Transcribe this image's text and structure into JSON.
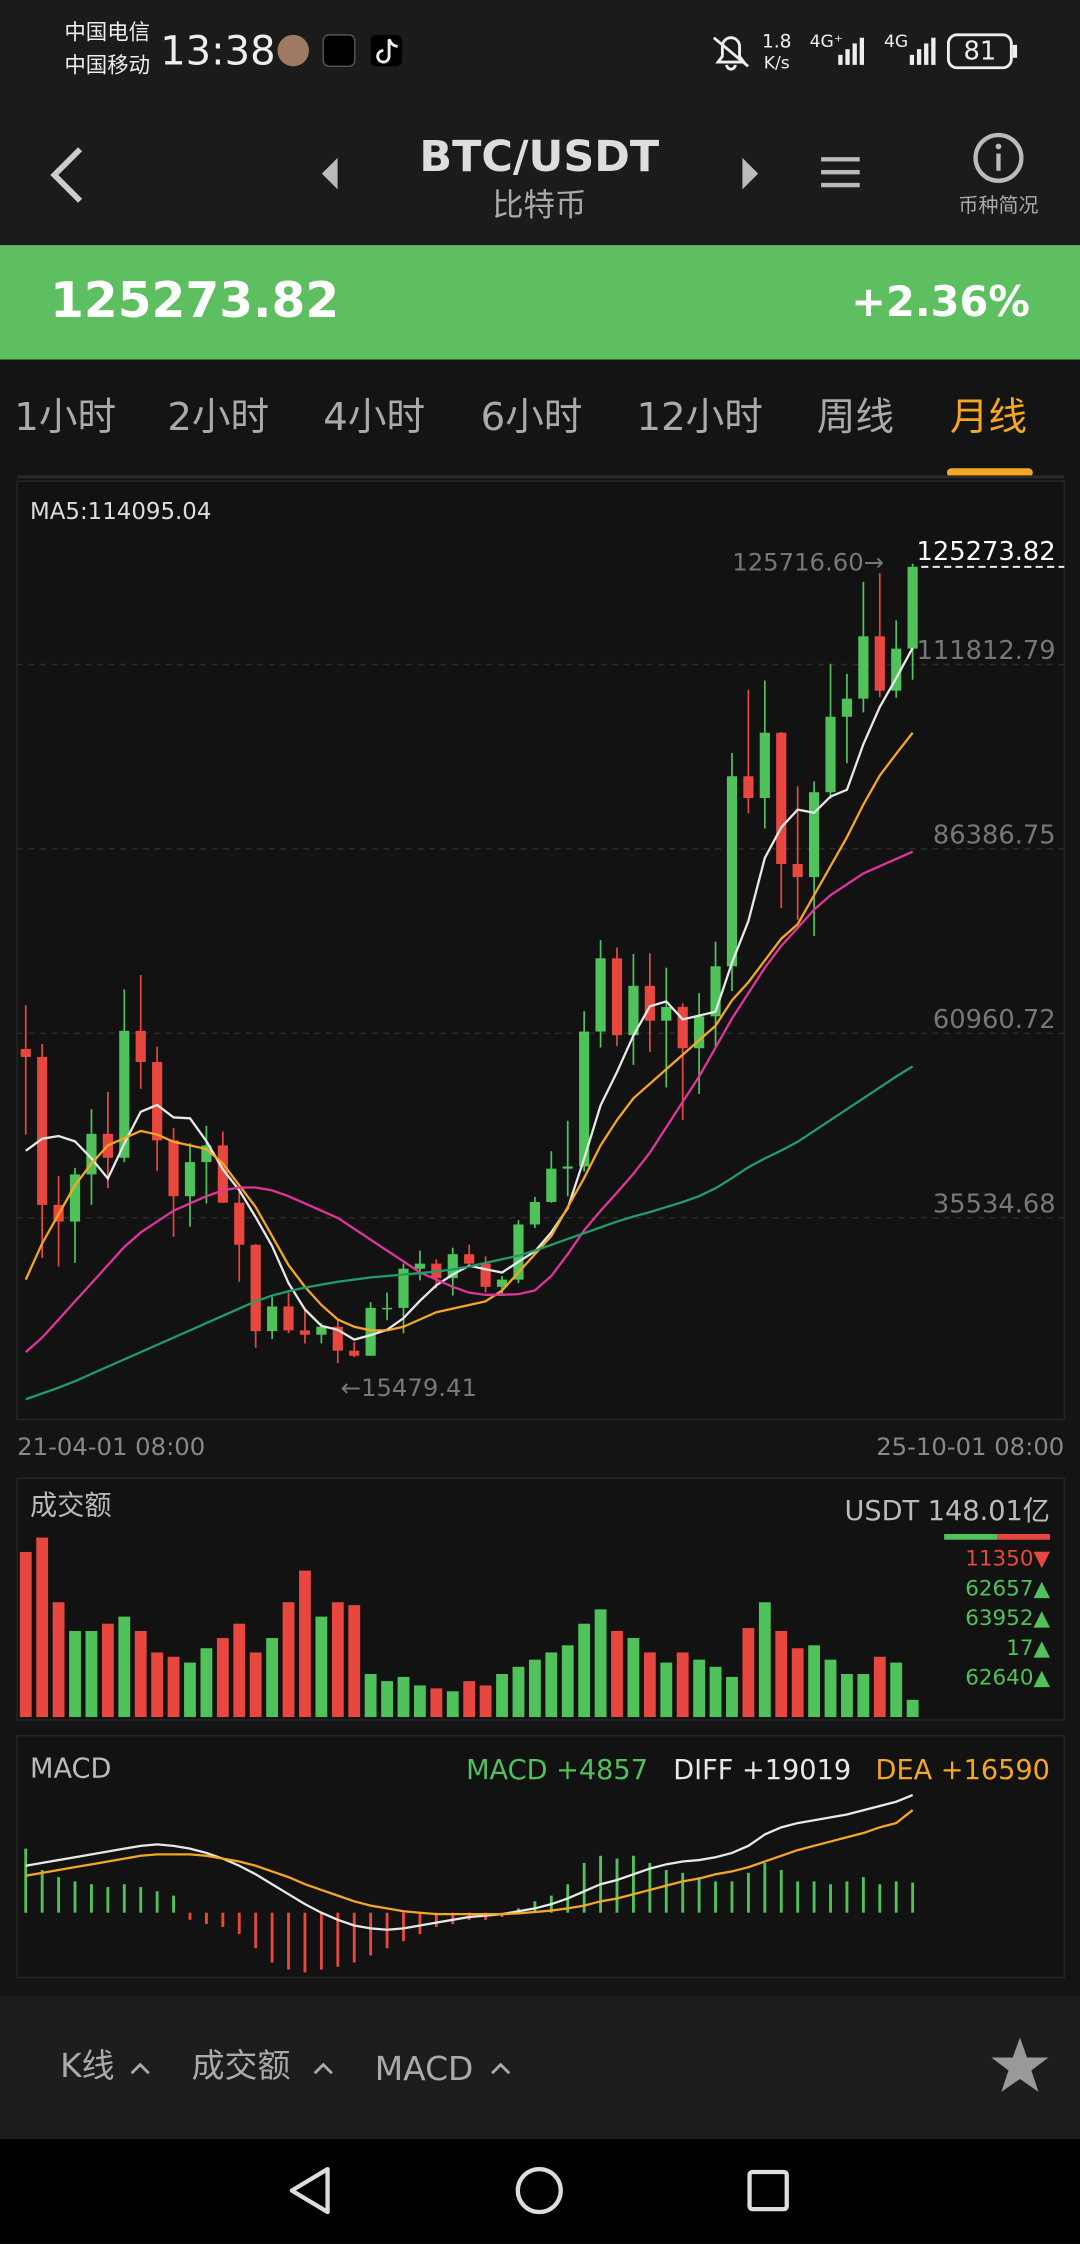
{
  "status_bar": {
    "carrier_1": "中国电信",
    "carrier_2": "中国移动",
    "time": "13:38",
    "speed": "1.8",
    "speed_unit": "K/s",
    "network_1": "4G⁺",
    "network_2": "4G",
    "battery": "81"
  },
  "header": {
    "pair": "BTC/USDT",
    "name": "比特币",
    "info": "币种简况"
  },
  "ticker": {
    "price": "125273.82",
    "change": "+2.36%"
  },
  "tabs": {
    "items": [
      "1小时",
      "2小时",
      "4小时",
      "6小时",
      "12小时",
      "周线",
      "月线"
    ],
    "active": 6
  },
  "chart_data": {
    "type": "candlestick",
    "ma_label": "MA5:114095.04",
    "categories": [
      "21-04-01 08:00",
      null,
      null,
      null,
      null,
      null,
      null,
      null,
      null,
      null,
      null,
      null,
      null,
      null,
      null,
      null,
      null,
      null,
      null,
      null,
      null,
      null,
      null,
      null,
      null,
      null,
      null,
      null,
      null,
      null,
      null,
      null,
      null,
      null,
      null,
      null,
      null,
      null,
      null,
      null,
      null,
      null,
      null,
      null,
      null,
      null,
      null,
      null,
      null,
      null,
      null,
      null,
      null,
      null,
      "25-10-01 08:00"
    ],
    "open": [
      58800,
      57700,
      37300,
      35000,
      41500,
      47100,
      43800,
      61300,
      57000,
      46200,
      38500,
      43200,
      45500,
      37600,
      31800,
      19900,
      23300,
      20000,
      19400,
      20500,
      17200,
      16500,
      23100,
      23100,
      28500,
      29200,
      27200,
      30500,
      29200,
      26000,
      27000,
      34600,
      37700,
      42300,
      42600,
      61200,
      71300,
      60700,
      67500,
      62700,
      64600,
      58900,
      63300,
      70200,
      96400,
      93400,
      102400,
      84300,
      82500,
      94200,
      104600,
      107100,
      115700,
      108200,
      114000
    ],
    "high": [
      64850,
      59500,
      41300,
      42400,
      50500,
      52900,
      67000,
      69000,
      59100,
      47900,
      45800,
      48200,
      47400,
      40000,
      31900,
      24600,
      25200,
      22800,
      21000,
      21400,
      18400,
      23900,
      25200,
      29200,
      31000,
      29800,
      31400,
      31800,
      30200,
      27500,
      35200,
      38400,
      44700,
      48900,
      64000,
      73800,
      72800,
      71900,
      72000,
      70000,
      65100,
      66500,
      73600,
      99600,
      108300,
      109600,
      102500,
      95000,
      95700,
      111900,
      110500,
      123200,
      124400,
      117900,
      125716.6
    ],
    "low": [
      47000,
      30000,
      28800,
      29300,
      37300,
      39600,
      43200,
      53300,
      42000,
      32900,
      34300,
      37500,
      37600,
      26700,
      17600,
      18800,
      19600,
      18200,
      18200,
      15479.41,
      16300,
      16500,
      21400,
      19600,
      26900,
      25800,
      24800,
      28900,
      25200,
      24900,
      26500,
      34100,
      37600,
      38500,
      41900,
      59000,
      59200,
      56600,
      58400,
      53500,
      49000,
      52600,
      58900,
      66800,
      91300,
      89200,
      78200,
      76600,
      74400,
      93300,
      98200,
      105200,
      107300,
      107200,
      109700
    ],
    "close": [
      57700,
      37300,
      35000,
      41500,
      47100,
      43800,
      61300,
      57000,
      46200,
      38500,
      43200,
      45500,
      37600,
      31800,
      19900,
      23300,
      20000,
      19400,
      20500,
      17200,
      16500,
      23100,
      23100,
      28500,
      29200,
      27200,
      30500,
      29200,
      26000,
      27000,
      34600,
      37700,
      42300,
      42600,
      61200,
      71300,
      60700,
      67500,
      62700,
      64600,
      58900,
      63300,
      70200,
      96400,
      93400,
      102400,
      84300,
      82500,
      94200,
      104600,
      107100,
      115700,
      108200,
      114000,
      125273.82
    ],
    "up_color": "#4fc25a",
    "down_color": "#e8473f",
    "ma_lines": [
      {
        "color": "#e8e8e8",
        "values": [
          44760,
          46420,
          46800,
          46060,
          43720,
          40940,
          45740,
          50140,
          51080,
          49360,
          49240,
          46080,
          42200,
          39320,
          35600,
          31620,
          26520,
          22880,
          20620,
          20080,
          18720,
          19340,
          20080,
          21680,
          24080,
          26220,
          27700,
          28920,
          28420,
          27980,
          29460,
          30900,
          33520,
          36840,
          43680,
          51020,
          55620,
          60660,
          64680,
          65360,
          62880,
          63400,
          63940,
          70680,
          76440,
          85140,
          89340,
          91800,
          91360,
          93600,
          94540,
          100820,
          105960,
          109920,
          114095.04
        ]
      },
      {
        "color": "#f5a623",
        "values": [
          27000,
          32000,
          36000,
          40000,
          43000,
          45500,
          46500,
          47500,
          47000,
          46000,
          45500,
          45000,
          43000,
          40000,
          37000,
          33000,
          29000,
          26000,
          23500,
          21500,
          20500,
          20000,
          20000,
          20500,
          21500,
          22500,
          23000,
          23500,
          24000,
          25500,
          28000,
          30500,
          33000,
          37000,
          41000,
          45500,
          49000,
          52000,
          54000,
          56000,
          58000,
          60000,
          62000,
          65500,
          68000,
          71000,
          74000,
          76000,
          80000,
          84000,
          88000,
          92500,
          96500,
          99500,
          102400
        ]
      },
      {
        "color": "#e0359a",
        "values": [
          17000,
          19000,
          21500,
          24000,
          26500,
          29000,
          31500,
          33500,
          35000,
          36500,
          37500,
          38500,
          39300,
          39700,
          39700,
          39300,
          38500,
          37500,
          36500,
          35500,
          34000,
          32500,
          31000,
          29500,
          28000,
          27000,
          26000,
          25200,
          24900,
          24900,
          25000,
          25500,
          27500,
          30500,
          33800,
          36500,
          39000,
          41600,
          44500,
          48000,
          51500,
          55000,
          59000,
          63000,
          66500,
          70000,
          73000,
          75500,
          78000,
          80000,
          81500,
          83000,
          84000,
          85000,
          86000
        ]
      },
      {
        "color": "#1e9e6a",
        "values": [
          10500,
          11300,
          12100,
          13000,
          14000,
          15000,
          16000,
          17000,
          18000,
          19000,
          20000,
          21000,
          22000,
          23000,
          24000,
          24800,
          25400,
          25900,
          26300,
          26700,
          27000,
          27300,
          27500,
          27700,
          27900,
          28100,
          28400,
          28800,
          29300,
          29800,
          30300,
          31000,
          31800,
          32600,
          33400,
          34200,
          35000,
          35700,
          36300,
          37000,
          37700,
          38500,
          39600,
          41000,
          42500,
          43700,
          44800,
          46000,
          47500,
          49000,
          50500,
          52000,
          53500,
          55000,
          56400
        ]
      }
    ],
    "ylim": [
      8100,
      136300
    ],
    "yticks": [
      35534.68,
      60960.72,
      86386.75,
      111812.79
    ],
    "grid": true,
    "high_mark": {
      "value": 125716.6,
      "label": "125716.60→"
    },
    "low_mark": {
      "value": 15479.41,
      "label": "←15479.41"
    },
    "last_price": 125273.82
  },
  "volume": {
    "title": "成交额",
    "latest_label": "USDT 148.01亿",
    "values": [
      1415,
      1538,
      984,
      738,
      738,
      800,
      861,
      738,
      554,
      517,
      467,
      590,
      677,
      800,
      554,
      677,
      984,
      1255,
      861,
      984,
      959,
      369,
      308,
      344,
      271,
      246,
      221,
      308,
      271,
      369,
      431,
      492,
      554,
      615,
      800,
      923,
      738,
      677,
      554,
      467,
      554,
      492,
      431,
      344,
      763,
      984,
      738,
      590,
      615,
      492,
      369,
      369,
      517,
      467,
      148.01
    ],
    "ylim": [
      0,
      1900
    ],
    "side_labels": [
      {
        "text": "11350▼",
        "color": "#e8473f"
      },
      {
        "text": "62657▲",
        "color": "#4fc25a"
      },
      {
        "text": "63952▲",
        "color": "#4fc25a"
      },
      {
        "text": "17▲",
        "color": "#4fc25a"
      },
      {
        "text": "62640▲",
        "color": "#4fc25a"
      }
    ]
  },
  "macd": {
    "title": "MACD",
    "macd_label": "MACD +4857",
    "diff_label": "DIFF +19019",
    "dea_label": "DEA +16590",
    "histogram": [
      10350,
      6900,
      5750,
      5060,
      4600,
      4140,
      4600,
      4140,
      3450,
      2760,
      -1150,
      -1840,
      -2300,
      -3450,
      -5750,
      -8050,
      -9200,
      -9660,
      -9200,
      -8740,
      -8050,
      -6900,
      -5750,
      -4600,
      -3450,
      -2300,
      -1840,
      -1150,
      -1150,
      -690,
      690,
      1840,
      2760,
      4600,
      8050,
      9200,
      8740,
      9200,
      8050,
      6900,
      6440,
      5750,
      5060,
      5060,
      6440,
      8050,
      6900,
      5060,
      5060,
      4600,
      5060,
      5750,
      4600,
      5060,
      4857
    ],
    "diff": [
      7590,
      8050,
      8510,
      8970,
      9430,
      9890,
      10350,
      10810,
      11040,
      10810,
      10350,
      9660,
      8740,
      7590,
      6210,
      4600,
      2990,
      1380,
      0,
      -1150,
      -2070,
      -2530,
      -2760,
      -2530,
      -2070,
      -1610,
      -1150,
      -690,
      -460,
      -230,
      230,
      690,
      1380,
      2300,
      3450,
      4600,
      5290,
      6210,
      7130,
      7820,
      8280,
      8510,
      8970,
      9660,
      10810,
      12650,
      13800,
      14490,
      14950,
      15410,
      15870,
      16560,
      17250,
      17940,
      19019
    ],
    "dea": [
      5980,
      6440,
      6900,
      7360,
      7820,
      8280,
      8740,
      9200,
      9430,
      9430,
      9430,
      9200,
      8740,
      8280,
      7590,
      6670,
      5750,
      4600,
      3680,
      2760,
      1840,
      1150,
      690,
      230,
      0,
      -230,
      -230,
      -230,
      -230,
      -230,
      -115,
      115,
      345,
      690,
      1150,
      1840,
      2300,
      2990,
      3680,
      4370,
      5060,
      5520,
      6210,
      6670,
      7360,
      8280,
      9200,
      10120,
      10810,
      11500,
      12190,
      12880,
      13800,
      14490,
      16590
    ],
    "diff_color": "#e8e8e8",
    "dea_color": "#f5a623",
    "ylim": [
      -10000,
      27000
    ]
  },
  "bottom_bar": {
    "items": [
      "K线",
      "成交额",
      "MACD"
    ]
  }
}
